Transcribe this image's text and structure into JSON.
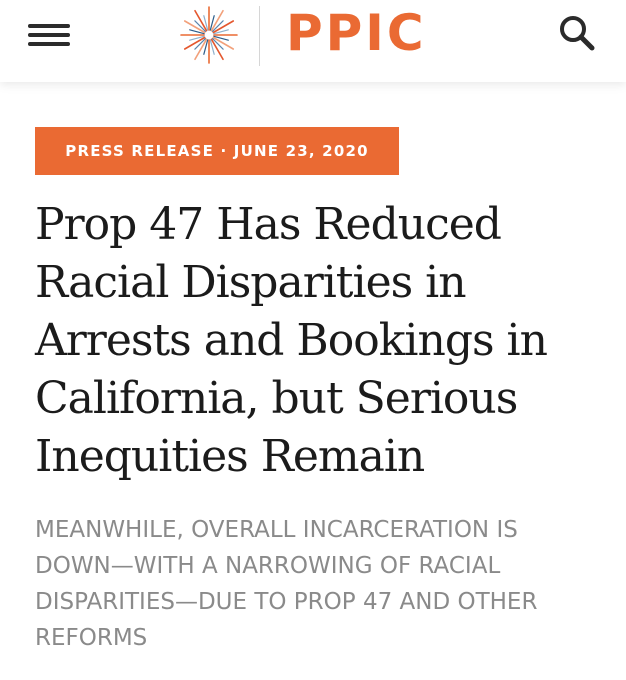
{
  "brand": {
    "logo_text": "PPIC",
    "accent_color": "#ea6a33",
    "logo_icon": "starburst-icon"
  },
  "header": {
    "menu_icon": "hamburger-menu-icon",
    "search_icon": "search-icon"
  },
  "article": {
    "tag": "PRESS RELEASE · JUNE 23, 2020",
    "headline": "Prop 47 Has Reduced Racial Disparities in Arrests and Bookings in California, but Serious Inequities Remain",
    "dek": "MEANWHILE, OVERALL INCARCERATION IS DOWN—WITH A NARROWING OF RACIAL DISPARITIES—DUE TO PROP 47 AND OTHER REFORMS"
  },
  "colors": {
    "headline": "#1b1b1b",
    "dek": "#8a8a8a",
    "header_bg": "#ffffff"
  }
}
